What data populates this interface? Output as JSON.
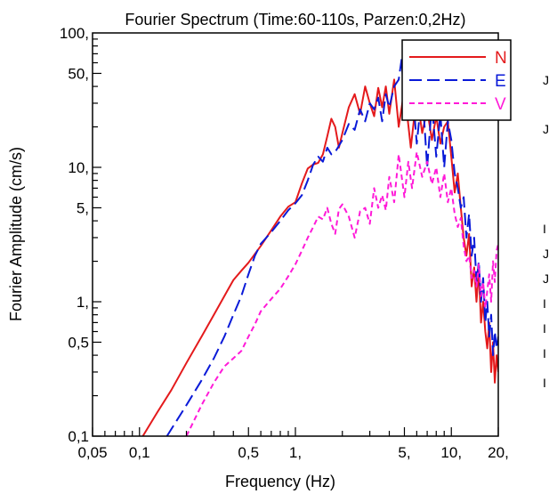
{
  "chart_data": {
    "type": "line",
    "title": "Fourier Spectrum (Time:60-110s, Parzen:0,2Hz)",
    "xlabel": "Frequency (Hz)",
    "ylabel": "Fourier Amplitude (cm/s)",
    "xscale": "log",
    "yscale": "log",
    "xlim": [
      0.05,
      20
    ],
    "ylim": [
      0.1,
      100
    ],
    "x_tick_labels": [
      {
        "value": 0.05,
        "label": "0,05"
      },
      {
        "value": 0.1,
        "label": "0,1"
      },
      {
        "value": 0.5,
        "label": "0,5"
      },
      {
        "value": 1,
        "label": "1,"
      },
      {
        "value": 5,
        "label": "5,"
      },
      {
        "value": 10,
        "label": "10,"
      },
      {
        "value": 20,
        "label": "20,"
      }
    ],
    "y_tick_labels": [
      {
        "value": 0.1,
        "label": "0,1"
      },
      {
        "value": 0.5,
        "label": "0,5"
      },
      {
        "value": 1,
        "label": "1,"
      },
      {
        "value": 5,
        "label": "5,"
      },
      {
        "value": 10,
        "label": "10,"
      },
      {
        "value": 50,
        "label": "50,"
      },
      {
        "value": 100,
        "label": "100,"
      }
    ],
    "legend_position": "top-right",
    "grid": false,
    "series": [
      {
        "name": "N",
        "color": "#e41a1c",
        "dash": "solid",
        "x": [
          0.105,
          0.13,
          0.16,
          0.2,
          0.25,
          0.3,
          0.35,
          0.4,
          0.45,
          0.5,
          0.6,
          0.7,
          0.8,
          0.9,
          1.0,
          1.1,
          1.2,
          1.3,
          1.4,
          1.5,
          1.6,
          1.7,
          1.8,
          1.9,
          2.0,
          2.2,
          2.4,
          2.6,
          2.8,
          3.0,
          3.2,
          3.4,
          3.6,
          3.8,
          4.0,
          4.3,
          4.6,
          5.0,
          5.5,
          6.0,
          6.5,
          7.0,
          7.5,
          8.0,
          8.5,
          9.0,
          9.5,
          10.0,
          10.5,
          11.0,
          11.5,
          12.0,
          12.5,
          13.0,
          13.5,
          14.0,
          14.5,
          15.0,
          15.5,
          16.0,
          16.5,
          17.0,
          17.5,
          18.0,
          18.5,
          19.0,
          19.5,
          20.0
        ],
        "y": [
          0.1,
          0.15,
          0.22,
          0.35,
          0.55,
          0.8,
          1.1,
          1.45,
          1.7,
          1.95,
          2.6,
          3.4,
          4.3,
          5.1,
          5.5,
          7.6,
          9.8,
          10.5,
          10.8,
          12.5,
          17.0,
          23.0,
          20.0,
          14.0,
          18.0,
          28.0,
          35.0,
          25.0,
          40.0,
          30.0,
          24.0,
          39.0,
          28.0,
          40.0,
          25.0,
          45.0,
          20.0,
          38.0,
          14.0,
          35.0,
          18.0,
          27.0,
          16.0,
          24.0,
          15.0,
          20.0,
          22.0,
          12.0,
          6.5,
          9.0,
          5.0,
          3.0,
          2.2,
          3.2,
          1.3,
          1.8,
          1.0,
          1.7,
          0.7,
          1.0,
          0.6,
          0.45,
          0.7,
          0.3,
          0.5,
          0.25,
          0.4,
          0.3
        ]
      },
      {
        "name": "E",
        "color": "#0a1ad8",
        "dash": "long-dash",
        "x": [
          0.15,
          0.2,
          0.25,
          0.3,
          0.35,
          0.4,
          0.45,
          0.5,
          0.55,
          0.6,
          0.7,
          0.8,
          0.9,
          1.0,
          1.1,
          1.2,
          1.3,
          1.4,
          1.5,
          1.6,
          1.7,
          1.8,
          2.0,
          2.2,
          2.4,
          2.6,
          2.8,
          3.0,
          3.2,
          3.4,
          3.6,
          3.8,
          4.0,
          4.3,
          4.6,
          4.8,
          5.0,
          5.5,
          6.0,
          6.5,
          7.0,
          7.5,
          8.0,
          8.5,
          9.0,
          9.5,
          10.0,
          10.5,
          11.0,
          11.5,
          12.0,
          12.5,
          13.0,
          13.5,
          14.0,
          14.5,
          15.0,
          15.5,
          16.0,
          16.5,
          17.0,
          17.5,
          18.0,
          18.5,
          19.0,
          19.5,
          20.0
        ],
        "y": [
          0.1,
          0.17,
          0.26,
          0.38,
          0.55,
          0.8,
          1.1,
          1.6,
          2.2,
          2.7,
          3.3,
          4.0,
          4.8,
          5.4,
          6.2,
          8.0,
          10.5,
          12.0,
          11.0,
          14.0,
          12.5,
          13.0,
          16.0,
          21.0,
          19.0,
          27.0,
          22.0,
          30.0,
          27.0,
          33.0,
          22.0,
          35.0,
          28.0,
          40.0,
          45.0,
          64.0,
          30.0,
          55.0,
          15.0,
          38.0,
          10.0,
          30.0,
          12.0,
          25.0,
          10.0,
          22.0,
          16.0,
          9.0,
          7.0,
          5.0,
          6.0,
          3.0,
          4.5,
          2.2,
          3.0,
          1.4,
          2.0,
          1.0,
          1.5,
          0.7,
          1.0,
          0.55,
          0.8,
          0.4,
          0.6,
          0.45,
          0.55
        ]
      },
      {
        "name": "V",
        "color": "#ff1ad8",
        "dash": "short-dash",
        "x": [
          0.2,
          0.25,
          0.3,
          0.35,
          0.4,
          0.45,
          0.5,
          0.55,
          0.6,
          0.7,
          0.8,
          0.9,
          1.0,
          1.1,
          1.2,
          1.3,
          1.4,
          1.5,
          1.6,
          1.7,
          1.8,
          1.9,
          2.0,
          2.2,
          2.4,
          2.6,
          2.8,
          3.0,
          3.2,
          3.4,
          3.6,
          3.8,
          4.0,
          4.3,
          4.6,
          5.0,
          5.3,
          5.6,
          6.0,
          6.5,
          7.0,
          7.5,
          8.0,
          8.5,
          9.0,
          9.5,
          10.0,
          10.5,
          11.0,
          11.5,
          12.0,
          12.5,
          13.0,
          13.5,
          14.0,
          14.5,
          15.0,
          15.5,
          16.0,
          16.5,
          17.0,
          17.5,
          18.0,
          18.5,
          19.0,
          19.5,
          20.0
        ],
        "y": [
          0.1,
          0.17,
          0.25,
          0.33,
          0.38,
          0.43,
          0.55,
          0.68,
          0.85,
          1.05,
          1.25,
          1.55,
          1.9,
          2.4,
          3.0,
          3.6,
          4.3,
          4.1,
          5.0,
          3.8,
          3.2,
          4.9,
          5.3,
          4.3,
          3.0,
          4.7,
          5.0,
          3.8,
          7.0,
          5.0,
          6.2,
          4.8,
          8.5,
          5.5,
          12.5,
          6.0,
          11.0,
          7.0,
          13.0,
          8.5,
          11.0,
          7.5,
          10.0,
          6.0,
          9.0,
          5.5,
          7.0,
          4.5,
          3.6,
          4.2,
          2.6,
          2.0,
          2.2,
          1.5,
          1.7,
          1.3,
          1.9,
          1.1,
          1.4,
          0.9,
          1.2,
          1.6,
          1.0,
          2.0,
          1.4,
          2.4,
          2.7
        ]
      }
    ]
  },
  "margin_glyphs": [
    "J",
    "J",
    "I",
    "J",
    "J",
    "I",
    "I",
    "I",
    "I"
  ]
}
